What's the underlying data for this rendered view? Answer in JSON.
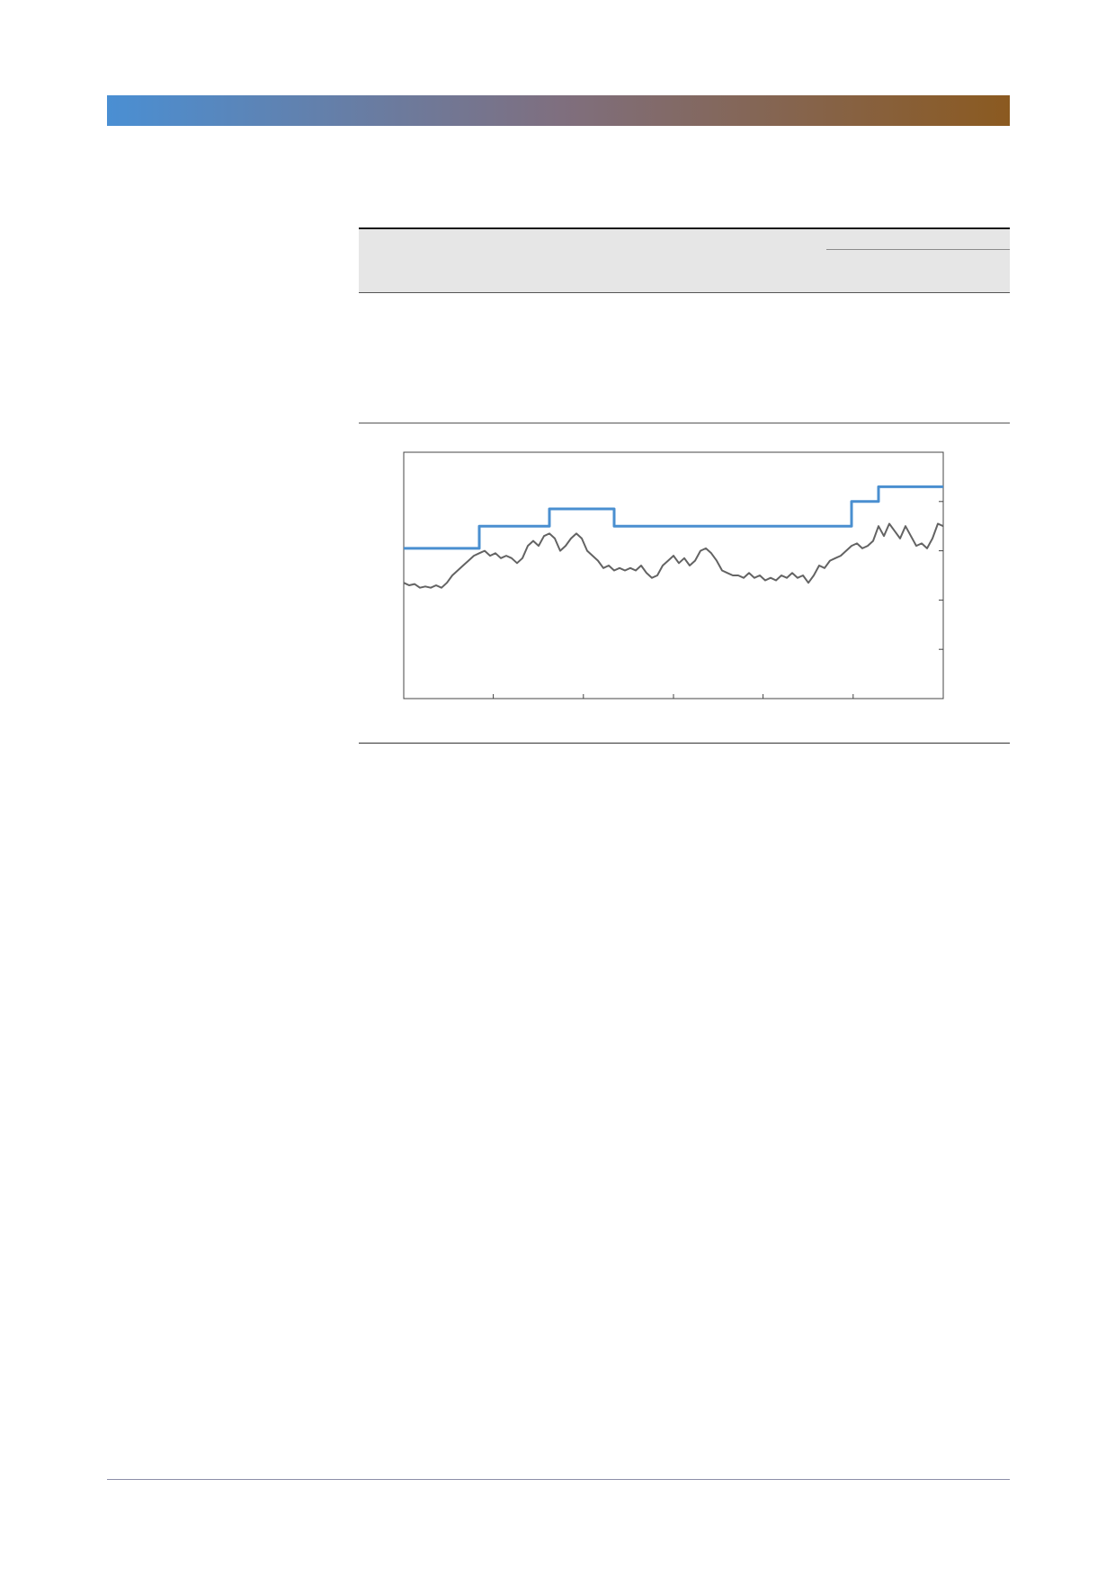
{
  "theme": {
    "band_start": "#4a8fd3",
    "band_mid": "#7f6f7f",
    "band_end": "#8b5a20",
    "series_colors": [
      "#4a8fd0",
      "#636363"
    ]
  },
  "chart_data": {
    "type": "line",
    "title": "",
    "xlabel": "",
    "ylabel": "",
    "grid": false,
    "legend": "none",
    "xlim": [
      0,
      100
    ],
    "ylim": [
      0,
      100
    ],
    "x_ticks": [
      0,
      16.6,
      33.3,
      50,
      66.6,
      83.3,
      100
    ],
    "y_ticks": [
      20,
      40,
      60,
      80
    ],
    "series": [
      {
        "style": "step",
        "color": "#4a8fd0",
        "points": [
          [
            0,
            61
          ],
          [
            14,
            61
          ],
          [
            14,
            70
          ],
          [
            27,
            70
          ],
          [
            27,
            77
          ],
          [
            39,
            77
          ],
          [
            39,
            70
          ],
          [
            83,
            70
          ],
          [
            83,
            80
          ],
          [
            88,
            80
          ],
          [
            88,
            86
          ],
          [
            100,
            86
          ]
        ]
      },
      {
        "style": "line",
        "color": "#636363",
        "points": [
          [
            0,
            47
          ],
          [
            1,
            46
          ],
          [
            2,
            46.5
          ],
          [
            3,
            45
          ],
          [
            4,
            45.5
          ],
          [
            5,
            45
          ],
          [
            6,
            46
          ],
          [
            7,
            45
          ],
          [
            8,
            47
          ],
          [
            9,
            50
          ],
          [
            10,
            52
          ],
          [
            11,
            54
          ],
          [
            12,
            56
          ],
          [
            13,
            58
          ],
          [
            14,
            59
          ],
          [
            15,
            60
          ],
          [
            16,
            58
          ],
          [
            17,
            59
          ],
          [
            18,
            57
          ],
          [
            19,
            58
          ],
          [
            20,
            57
          ],
          [
            21,
            55
          ],
          [
            22,
            57
          ],
          [
            23,
            62
          ],
          [
            24,
            64
          ],
          [
            25,
            62
          ],
          [
            26,
            66
          ],
          [
            27,
            67
          ],
          [
            28,
            65
          ],
          [
            29,
            60
          ],
          [
            30,
            62
          ],
          [
            31,
            65
          ],
          [
            32,
            67
          ],
          [
            33,
            65
          ],
          [
            34,
            60
          ],
          [
            35,
            58
          ],
          [
            36,
            56
          ],
          [
            37,
            53
          ],
          [
            38,
            54
          ],
          [
            39,
            52
          ],
          [
            40,
            53
          ],
          [
            41,
            52
          ],
          [
            42,
            53
          ],
          [
            43,
            52
          ],
          [
            44,
            54
          ],
          [
            45,
            51
          ],
          [
            46,
            49
          ],
          [
            47,
            50
          ],
          [
            48,
            54
          ],
          [
            49,
            56
          ],
          [
            50,
            58
          ],
          [
            51,
            55
          ],
          [
            52,
            57
          ],
          [
            53,
            54
          ],
          [
            54,
            56
          ],
          [
            55,
            60
          ],
          [
            56,
            61
          ],
          [
            57,
            59
          ],
          [
            58,
            56
          ],
          [
            59,
            52
          ],
          [
            60,
            51
          ],
          [
            61,
            50
          ],
          [
            62,
            50
          ],
          [
            63,
            49
          ],
          [
            64,
            51
          ],
          [
            65,
            49
          ],
          [
            66,
            50
          ],
          [
            67,
            48
          ],
          [
            68,
            49
          ],
          [
            69,
            48
          ],
          [
            70,
            50
          ],
          [
            71,
            49
          ],
          [
            72,
            51
          ],
          [
            73,
            49
          ],
          [
            74,
            50
          ],
          [
            75,
            47
          ],
          [
            76,
            50
          ],
          [
            77,
            54
          ],
          [
            78,
            53
          ],
          [
            79,
            56
          ],
          [
            80,
            57
          ],
          [
            81,
            58
          ],
          [
            82,
            60
          ],
          [
            83,
            62
          ],
          [
            84,
            63
          ],
          [
            85,
            61
          ],
          [
            86,
            62
          ],
          [
            87,
            64
          ],
          [
            88,
            70
          ],
          [
            89,
            66
          ],
          [
            90,
            71
          ],
          [
            91,
            68
          ],
          [
            92,
            65
          ],
          [
            93,
            70
          ],
          [
            94,
            66
          ],
          [
            95,
            62
          ],
          [
            96,
            63
          ],
          [
            97,
            61
          ],
          [
            98,
            65
          ],
          [
            99,
            71
          ],
          [
            100,
            70
          ]
        ]
      }
    ]
  }
}
